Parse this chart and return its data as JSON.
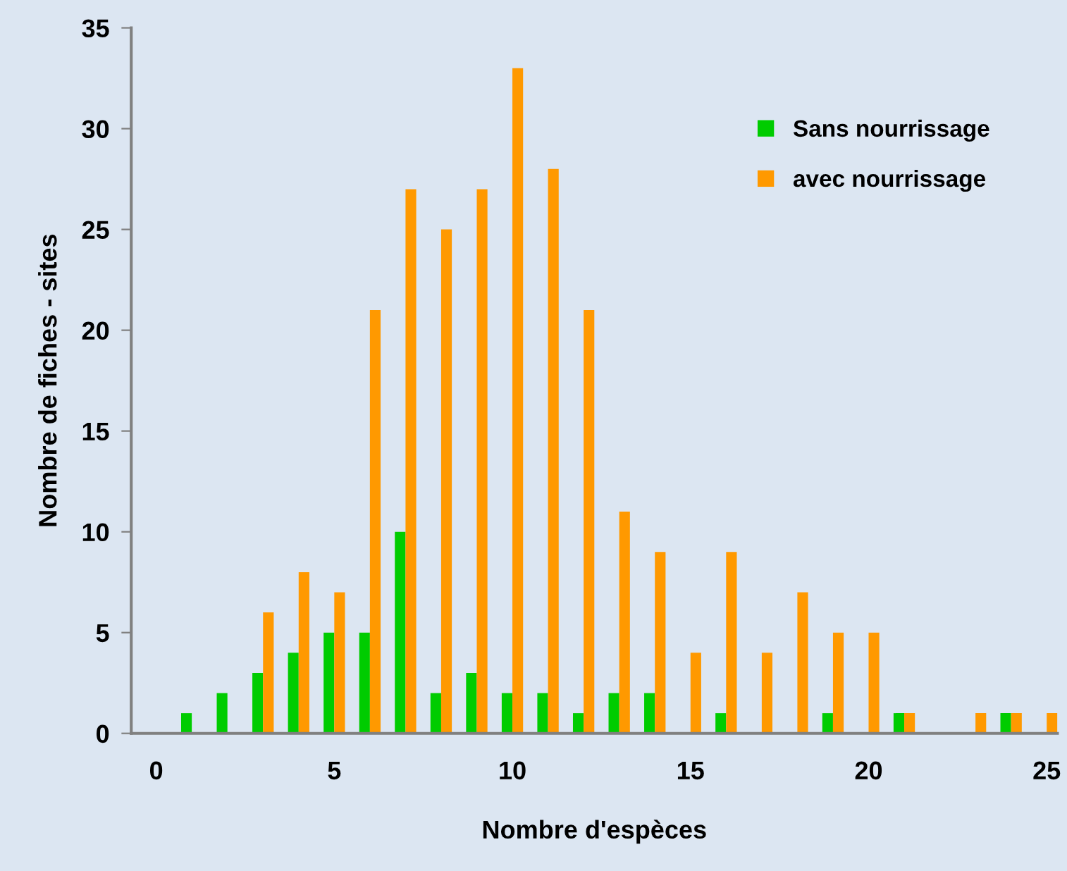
{
  "chart_data": {
    "type": "bar",
    "xlabel": "Nombre d'espèces",
    "ylabel": "Nombre de fiches - sites",
    "x": [
      1,
      2,
      3,
      4,
      5,
      6,
      7,
      8,
      9,
      10,
      11,
      12,
      13,
      14,
      15,
      16,
      17,
      18,
      19,
      20,
      21,
      22,
      23,
      24,
      25
    ],
    "series": [
      {
        "name": "Sans nourrissage",
        "color": "#00cc00",
        "values": [
          1,
          2,
          3,
          4,
          5,
          5,
          10,
          2,
          3,
          2,
          2,
          1,
          2,
          2,
          0,
          1,
          0,
          0,
          1,
          0,
          1,
          0,
          0,
          1,
          0
        ]
      },
      {
        "name": "avec nourrissage",
        "color": "#ff9900",
        "values": [
          0,
          0,
          6,
          8,
          7,
          21,
          27,
          25,
          27,
          33,
          28,
          21,
          11,
          9,
          4,
          9,
          4,
          7,
          5,
          5,
          1,
          0,
          1,
          1,
          1
        ]
      }
    ],
    "xlim": [
      -0.7,
      25.3
    ],
    "xticks": [
      0,
      5,
      10,
      15,
      20,
      25
    ],
    "ylim": [
      0,
      35
    ],
    "yticks": [
      0,
      5,
      10,
      15,
      20,
      25,
      30,
      35
    ],
    "grid": false,
    "legend": "top right"
  }
}
